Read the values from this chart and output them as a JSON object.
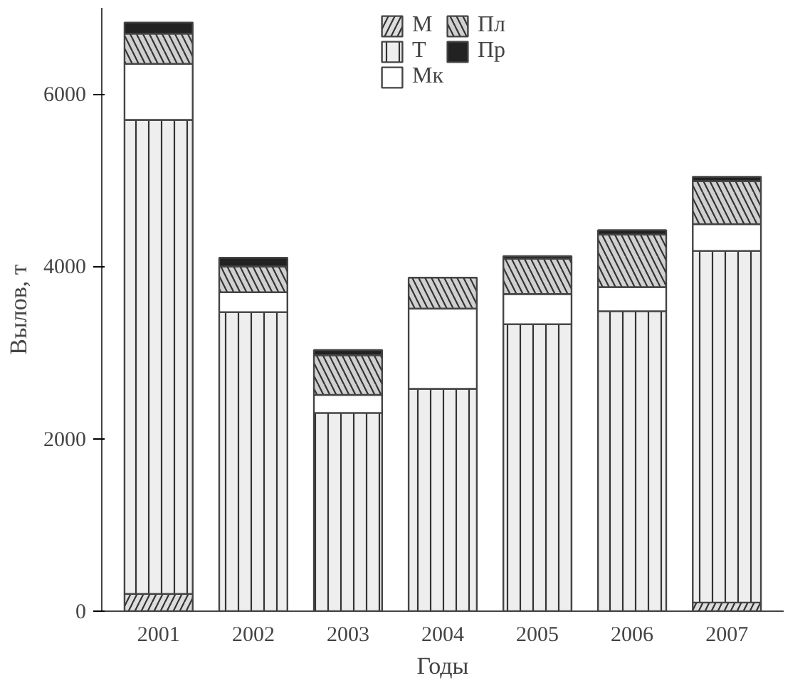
{
  "chart_data": {
    "type": "bar",
    "stacked": true,
    "xlabel": "Годы",
    "ylabel": "Вылов, т",
    "categories": [
      "2001",
      "2002",
      "2003",
      "2004",
      "2005",
      "2006",
      "2007"
    ],
    "ylim": [
      0,
      7000
    ],
    "yticks": [
      0,
      2000,
      4000,
      6000
    ],
    "grid": false,
    "legend": "top",
    "series": [
      {
        "name": "М",
        "color": "#dddddd",
        "values": [
          200,
          0,
          0,
          0,
          0,
          0,
          100
        ]
      },
      {
        "name": "Т",
        "color": "#eeeeee",
        "values": [
          5500,
          3470,
          2300,
          2580,
          3330,
          3480,
          4080
        ]
      },
      {
        "name": "Мк",
        "color": "#ffffff",
        "values": [
          650,
          230,
          210,
          930,
          350,
          280,
          310
        ]
      },
      {
        "name": "Пл",
        "color": "#d0d0d0",
        "values": [
          350,
          300,
          460,
          360,
          410,
          610,
          500
        ]
      },
      {
        "name": "Пр",
        "color": "#222222",
        "values": [
          130,
          100,
          60,
          0,
          30,
          50,
          50
        ]
      }
    ]
  }
}
